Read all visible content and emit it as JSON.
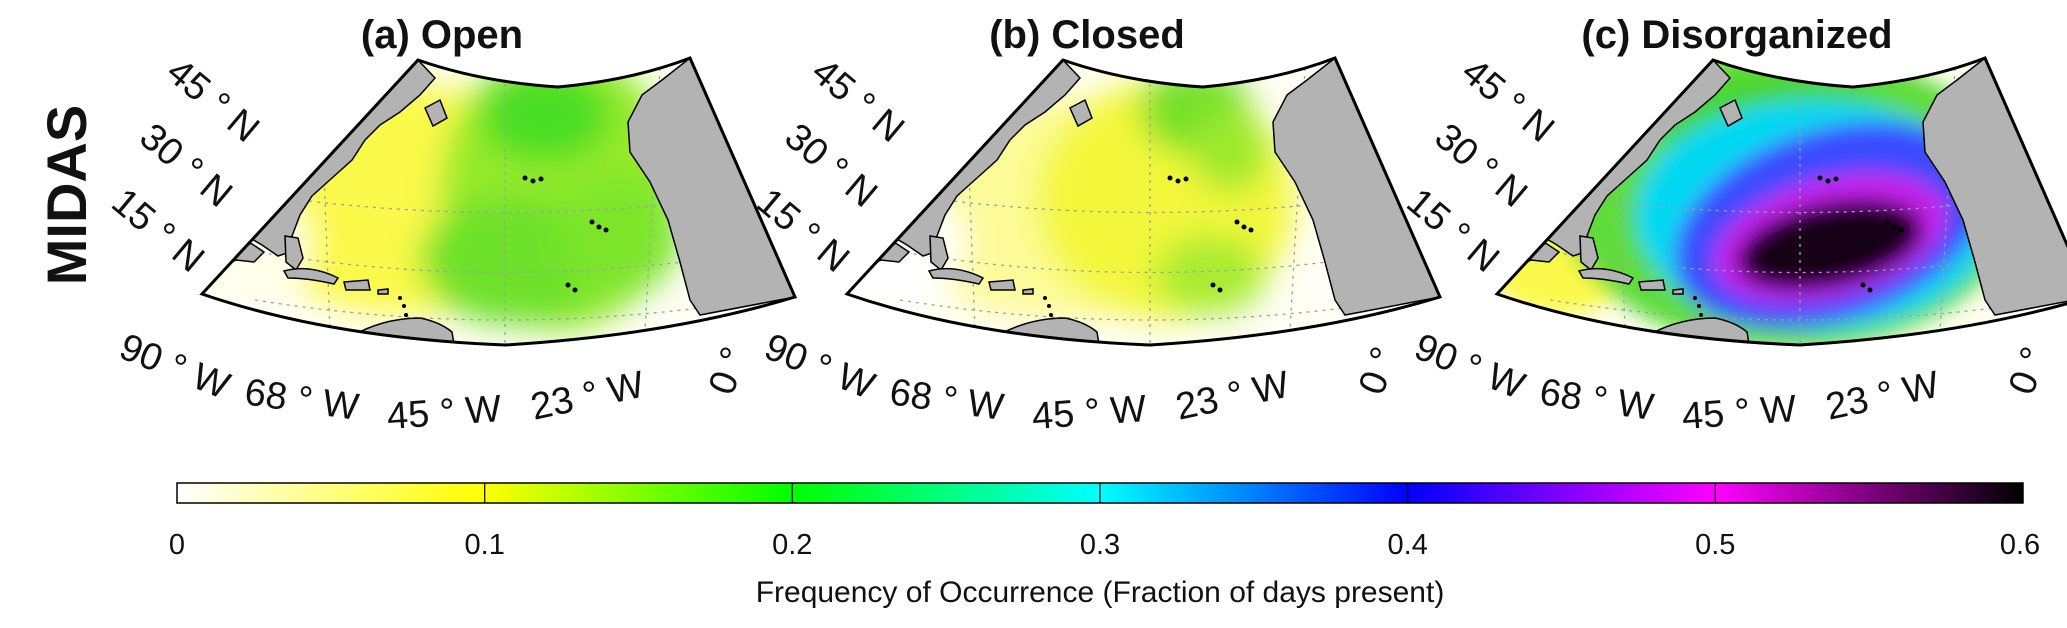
{
  "figure": {
    "row_label": "MIDAS",
    "panels": [
      {
        "title": "(a) Open",
        "intensity": "low-moderate, max ~0.2 in central/east Atlantic"
      },
      {
        "title": "(b) Closed",
        "intensity": "low, max ~0.2 near Nova Scotia and NE of Caribbean"
      },
      {
        "title": "(c) Disorganized",
        "intensity": "high, max ~0.6 in tropical/subtropical central Atlantic"
      }
    ],
    "lat_labels": [
      "45 ° N",
      "30 ° N",
      "15 ° N"
    ],
    "lon_labels": [
      "90 ° W",
      "68 ° W",
      "45 ° W",
      "23 ° W",
      "0 °"
    ],
    "land_color": "#b3b3b3"
  },
  "colorbar": {
    "ticks": [
      "0",
      "0.1",
      "0.2",
      "0.3",
      "0.4",
      "0.5",
      "0.6"
    ],
    "range": [
      0,
      0.6
    ],
    "label": "Frequency of Occurrence (Fraction of days present)",
    "colors": [
      "#ffffff",
      "#ffff00",
      "#00ff00",
      "#00ffff",
      "#0000ff",
      "#ff00ff",
      "#000000"
    ]
  }
}
